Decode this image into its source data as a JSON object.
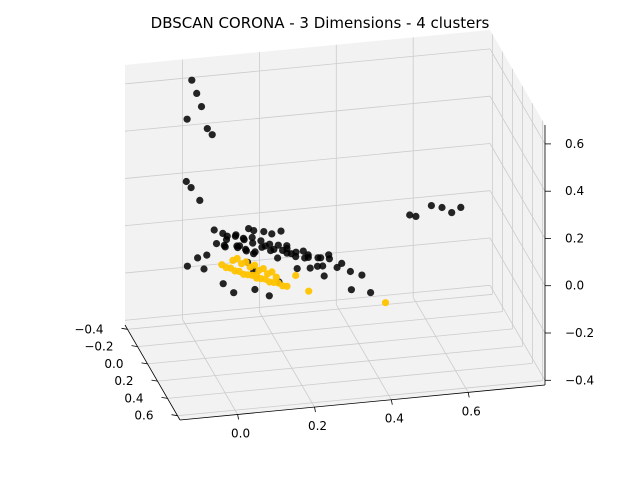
{
  "chart_data": {
    "type": "scatter",
    "projection": "3d",
    "title": "DBSCAN CORONA - 3 Dimensions - 4 clusters",
    "xlabel": "",
    "ylabel": "",
    "zlabel": "",
    "grid": true,
    "legend": "none",
    "axes": {
      "x": {
        "ticks": [
          0.0,
          0.2,
          0.4,
          0.6
        ],
        "tick_labels": [
          "0.0",
          "0.2",
          "0.4",
          "0.6"
        ],
        "range": [
          -0.15,
          0.8
        ]
      },
      "y": {
        "ticks": [
          -0.4,
          -0.2,
          0.0,
          0.2,
          0.4,
          0.6
        ],
        "tick_labels": [
          "−0.4",
          "−0.2",
          "0.0",
          "0.2",
          "0.4",
          "0.6"
        ],
        "range": [
          -0.45,
          0.65
        ]
      },
      "z": {
        "ticks": [
          -0.4,
          -0.2,
          0.0,
          0.2,
          0.4,
          0.6
        ],
        "tick_labels": [
          "−0.4",
          "−0.2",
          "0.0",
          "0.2",
          "0.4",
          "0.6"
        ],
        "range": [
          -0.42,
          0.68
        ]
      }
    },
    "colors": {
      "noise": "#000000",
      "cluster": "#ffc300",
      "pane": "#f2f2f2",
      "grid": "#cccccc"
    },
    "series": [
      {
        "color": "#000000",
        "x": [
          0.02,
          0.03,
          0.04,
          0.0,
          0.05,
          0.06,
          -0.01,
          0.0,
          0.02,
          0.25,
          0.28,
          0.3,
          0.33,
          0.3,
          0.35,
          0.18,
          0.2,
          0.22,
          0.24,
          0.26,
          0.28,
          0.32,
          0.55,
          0.58,
          0.6,
          0.62,
          0.5,
          0.52,
          0.15,
          0.12,
          0.2,
          0.1,
          0.08,
          0.18,
          0.1,
          0.05,
          0.08,
          0.1,
          0.14,
          0.16,
          0.2,
          0.22,
          0.25,
          0.28,
          0.3,
          0.06,
          0.08,
          0.12,
          0.14,
          0.16,
          0.18,
          0.2,
          0.24,
          0.03,
          0.05,
          0.08,
          0.1,
          0.12,
          0.15,
          0.17,
          0.19,
          0.21,
          0.04,
          0.06,
          0.09,
          0.11,
          0.13,
          0.0,
          0.02,
          0.01,
          0.07,
          -0.02,
          0.04,
          0.1,
          0.16,
          0.22,
          0.26,
          0.12,
          0.28,
          0.31,
          0.06,
          0.09,
          0.14,
          0.18,
          0.2
        ],
        "y": [
          -0.42,
          -0.4,
          -0.38,
          -0.36,
          -0.34,
          -0.32,
          -0.3,
          -0.28,
          -0.26,
          0.55,
          0.58,
          0.6,
          0.6,
          0.62,
          0.62,
          0.25,
          0.28,
          0.3,
          0.22,
          0.26,
          0.2,
          0.18,
          0.3,
          0.28,
          0.32,
          0.35,
          0.25,
          0.22,
          0.02,
          0.05,
          -0.02,
          0.1,
          0.15,
          -0.05,
          0.08,
          0.0,
          0.02,
          0.04,
          0.06,
          0.08,
          0.1,
          0.12,
          0.14,
          0.16,
          0.18,
          -0.02,
          0.0,
          0.02,
          0.04,
          0.06,
          0.08,
          0.1,
          0.12,
          -0.05,
          -0.03,
          -0.01,
          0.01,
          0.03,
          0.05,
          0.07,
          0.09,
          0.11,
          -0.08,
          -0.06,
          -0.04,
          -0.02,
          0.0,
          -0.15,
          -0.12,
          -0.1,
          0.15,
          -0.2,
          0.12,
          0.2,
          0.22,
          0.15,
          0.25,
          0.05,
          -0.05,
          0.0,
          -0.1,
          -0.12,
          -0.08,
          -0.1,
          -0.06
        ],
        "z": [
          0.6,
          0.55,
          0.5,
          0.46,
          0.42,
          0.4,
          0.22,
          0.2,
          0.15,
          0.18,
          0.15,
          0.12,
          0.1,
          0.05,
          0.03,
          0.12,
          0.1,
          0.08,
          0.05,
          0.06,
          0.0,
          -0.02,
          0.25,
          0.23,
          0.22,
          0.25,
          0.2,
          0.18,
          0.1,
          0.12,
          0.08,
          0.15,
          0.13,
          0.06,
          0.0,
          0.05,
          0.05,
          0.04,
          0.05,
          0.04,
          0.03,
          0.02,
          0.03,
          0.02,
          0.02,
          0.08,
          0.09,
          0.08,
          0.07,
          0.06,
          0.06,
          0.05,
          0.04,
          0.1,
          0.09,
          0.08,
          0.07,
          0.06,
          0.05,
          0.04,
          0.04,
          0.03,
          0.03,
          0.02,
          0.02,
          0.01,
          0.01,
          -0.05,
          -0.03,
          -0.08,
          0.1,
          -0.1,
          0.12,
          0.08,
          0.06,
          -0.02,
          0.02,
          -0.05,
          -0.1,
          -0.12,
          -0.15,
          -0.2,
          -0.18,
          -0.22,
          -0.15
        ]
      },
      {
        "color": "#ffc300",
        "x": [
          0.05,
          0.06,
          0.07,
          0.08,
          0.09,
          0.1,
          0.11,
          0.12,
          0.13,
          0.14,
          0.15,
          0.16,
          0.17,
          0.18,
          0.19,
          0.2,
          0.08,
          0.1,
          0.12,
          0.14,
          0.16,
          0.18,
          0.09,
          0.11,
          0.13,
          0.15,
          0.17,
          0.12,
          0.22,
          0.25,
          0.45
        ],
        "y": [
          -0.05,
          -0.04,
          -0.03,
          -0.02,
          -0.01,
          0.0,
          0.01,
          0.02,
          0.03,
          0.04,
          0.05,
          0.06,
          0.07,
          0.08,
          0.09,
          0.1,
          -0.06,
          -0.04,
          -0.02,
          0.0,
          0.02,
          0.04,
          -0.05,
          -0.03,
          -0.01,
          0.01,
          0.03,
          0.1,
          0.12,
          0.15,
          0.15
        ],
        "z": [
          -0.05,
          -0.06,
          -0.06,
          -0.07,
          -0.07,
          -0.08,
          -0.08,
          -0.08,
          -0.09,
          -0.09,
          -0.09,
          -0.1,
          -0.1,
          -0.1,
          -0.11,
          -0.11,
          -0.04,
          -0.05,
          -0.06,
          -0.07,
          -0.08,
          -0.09,
          -0.03,
          -0.04,
          -0.05,
          -0.06,
          -0.07,
          -0.05,
          -0.06,
          -0.12,
          -0.2
        ]
      }
    ]
  }
}
